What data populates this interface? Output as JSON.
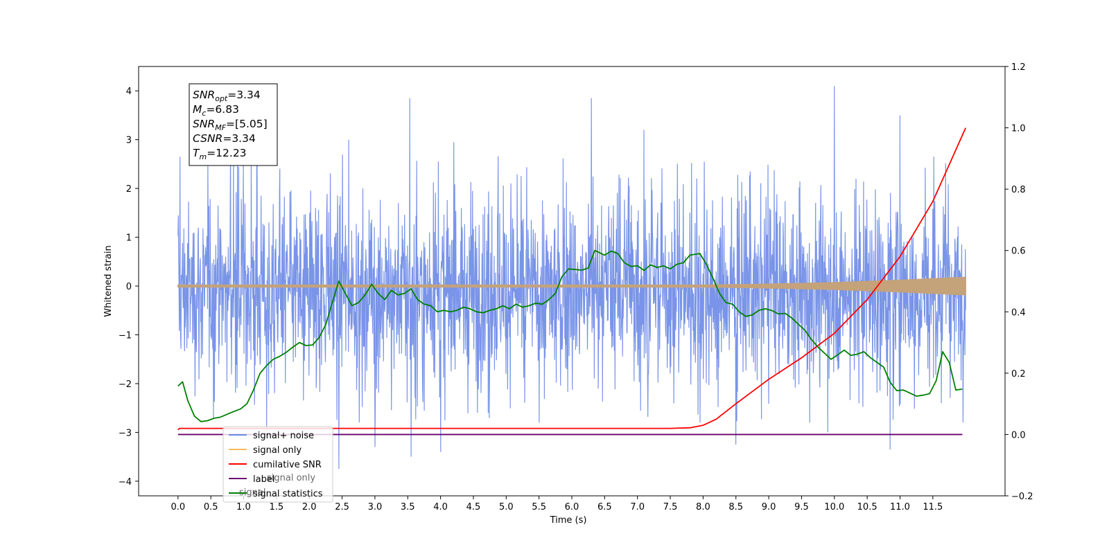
{
  "chart_data": {
    "type": "line",
    "xlabel": "Time (s)",
    "ylabel": "Whitened strain",
    "xlim": [
      -0.6,
      12.6
    ],
    "ylim_left": [
      -4.3,
      4.5
    ],
    "ylim_right": [
      -0.2,
      1.2
    ],
    "x_ticks": [
      "0.0",
      "0.5",
      "1.0",
      "1.5",
      "2.0",
      "2.5",
      "3.0",
      "3.5",
      "4.0",
      "4.5",
      "5.0",
      "5.5",
      "6.0",
      "6.5",
      "7.0",
      "7.5",
      "8.0",
      "8.5",
      "9.0",
      "9.5",
      "10.0",
      "10.5",
      "11.0",
      "11.5"
    ],
    "y_ticks_left": [
      "−4",
      "−3",
      "−2",
      "−1",
      "0",
      "1",
      "2",
      "3",
      "4"
    ],
    "y_ticks_right": [
      "−0.2",
      "0.0",
      "0.2",
      "0.4",
      "0.6",
      "0.8",
      "1.0",
      "1.2"
    ],
    "colors": {
      "signal_noise": "#6a88e6",
      "signal_only": "#f5bb5d",
      "cumulative_snr": "#ff0000",
      "label": "#6a006e",
      "signal_statistics": "#008000",
      "envelope_fill": "#c4a27a"
    },
    "legend": {
      "location": "lower-left",
      "entries": [
        {
          "key": "signal_noise",
          "label": "signal+ noise"
        },
        {
          "key": "signal_only",
          "label": "signal only"
        },
        {
          "key": "cumulative_snr",
          "label": "cumilative SNR"
        },
        {
          "key": "label",
          "label": "label"
        },
        {
          "key": "signal_statistics",
          "label": "signal statistics"
        }
      ],
      "hidden_text": [
        "signal only",
        "signal"
      ]
    },
    "info_box": {
      "lines": [
        {
          "var": "SNR",
          "sub": "opt",
          "value": "=3.34"
        },
        {
          "var": "M",
          "sub": "c",
          "value": "=6.83"
        },
        {
          "var": "SNR",
          "sub": "MF",
          "value": "=[5.05]"
        },
        {
          "var": "CSNR",
          "sub": "",
          "value": "=3.34"
        },
        {
          "var": "T",
          "sub": "m",
          "value": "=12.23"
        }
      ]
    },
    "series": [
      {
        "key": "signal_noise",
        "axis": "left",
        "description_type": "noisy",
        "x_range": [
          0,
          12.0
        ],
        "band_low": -1.7,
        "band_high": 1.5,
        "peaks": [
          [
            0.03,
            2.65
          ],
          [
            0.8,
            3.05
          ],
          [
            1.2,
            3.3
          ],
          [
            1.35,
            -2.95
          ],
          [
            2.6,
            3.0
          ],
          [
            3.0,
            -3.3
          ],
          [
            3.53,
            3.85
          ],
          [
            3.55,
            -3.5
          ],
          [
            4.0,
            -3.4
          ],
          [
            4.2,
            2.95
          ],
          [
            6.3,
            3.85
          ],
          [
            8.5,
            -3.25
          ],
          [
            10.0,
            4.1
          ],
          [
            10.85,
            -3.35
          ],
          [
            11.0,
            3.5
          ],
          [
            2.45,
            -3.75
          ],
          [
            7.1,
            3.2
          ],
          [
            9.9,
            -3.0
          ]
        ]
      },
      {
        "key": "signal_only",
        "axis": "left",
        "x": [
          0,
          7.5,
          8.0,
          9.0,
          10.0,
          11.0,
          12.0
        ],
        "amplitude": [
          0.02,
          0.02,
          0.02,
          0.04,
          0.07,
          0.12,
          0.18
        ]
      },
      {
        "key": "cumulative_snr",
        "axis": "right",
        "x": [
          0,
          0.02,
          7.5,
          7.8,
          8.0,
          8.2,
          8.5,
          9.0,
          9.5,
          10.0,
          10.5,
          11.0,
          11.5,
          12.0
        ],
        "y": [
          0.015,
          0.02,
          0.02,
          0.022,
          0.03,
          0.05,
          0.1,
          0.18,
          0.25,
          0.33,
          0.44,
          0.58,
          0.76,
          1.0
        ]
      },
      {
        "key": "label",
        "axis": "right",
        "x": [
          0,
          11.95
        ],
        "y": [
          0.0,
          0.0
        ]
      },
      {
        "key": "signal_statistics",
        "axis": "right",
        "x": [
          0,
          0.07,
          0.15,
          0.25,
          0.35,
          0.45,
          0.55,
          0.65,
          0.75,
          0.85,
          0.95,
          1.05,
          1.15,
          1.25,
          1.35,
          1.45,
          1.55,
          1.65,
          1.75,
          1.85,
          1.95,
          2.05,
          2.15,
          2.25,
          2.35,
          2.45,
          2.55,
          2.65,
          2.75,
          2.85,
          2.95,
          3.05,
          3.15,
          3.25,
          3.35,
          3.45,
          3.55,
          3.65,
          3.75,
          3.85,
          3.95,
          4.05,
          4.15,
          4.25,
          4.35,
          4.45,
          4.55,
          4.65,
          4.75,
          4.85,
          4.95,
          5.05,
          5.15,
          5.25,
          5.35,
          5.45,
          5.55,
          5.65,
          5.75,
          5.85,
          5.95,
          6.05,
          6.15,
          6.25,
          6.35,
          6.5,
          6.6,
          6.7,
          6.8,
          6.9,
          7.0,
          7.1,
          7.2,
          7.3,
          7.4,
          7.5,
          7.6,
          7.7,
          7.8,
          7.95,
          8.05,
          8.15,
          8.25,
          8.35,
          8.45,
          8.55,
          8.65,
          8.75,
          8.85,
          8.95,
          9.05,
          9.15,
          9.25,
          9.35,
          9.45,
          9.55,
          9.65,
          9.75,
          9.85,
          9.95,
          10.05,
          10.15,
          10.25,
          10.35,
          10.45,
          10.55,
          10.65,
          10.75,
          10.85,
          10.95,
          11.05,
          11.15,
          11.25,
          11.35,
          11.45,
          11.55,
          11.65,
          11.75,
          11.85,
          11.95
        ],
        "y": [
          0.158,
          0.172,
          0.11,
          0.06,
          0.042,
          0.045,
          0.053,
          0.057,
          0.066,
          0.075,
          0.083,
          0.1,
          0.145,
          0.2,
          0.225,
          0.245,
          0.255,
          0.268,
          0.285,
          0.3,
          0.29,
          0.292,
          0.316,
          0.358,
          0.43,
          0.5,
          0.46,
          0.42,
          0.43,
          0.455,
          0.49,
          0.46,
          0.44,
          0.47,
          0.455,
          0.46,
          0.475,
          0.44,
          0.425,
          0.42,
          0.4,
          0.405,
          0.4,
          0.405,
          0.415,
          0.41,
          0.4,
          0.397,
          0.405,
          0.41,
          0.42,
          0.41,
          0.425,
          0.415,
          0.42,
          0.428,
          0.425,
          0.44,
          0.46,
          0.515,
          0.54,
          0.538,
          0.536,
          0.543,
          0.6,
          0.585,
          0.598,
          0.59,
          0.56,
          0.548,
          0.55,
          0.535,
          0.553,
          0.545,
          0.55,
          0.54,
          0.555,
          0.56,
          0.585,
          0.59,
          0.555,
          0.51,
          0.46,
          0.43,
          0.425,
          0.4,
          0.385,
          0.39,
          0.405,
          0.41,
          0.404,
          0.393,
          0.395,
          0.38,
          0.36,
          0.34,
          0.31,
          0.285,
          0.265,
          0.245,
          0.26,
          0.275,
          0.258,
          0.262,
          0.27,
          0.25,
          0.235,
          0.22,
          0.17,
          0.143,
          0.145,
          0.135,
          0.125,
          0.128,
          0.133,
          0.175,
          0.27,
          0.235,
          0.145,
          0.148
        ]
      }
    ]
  }
}
